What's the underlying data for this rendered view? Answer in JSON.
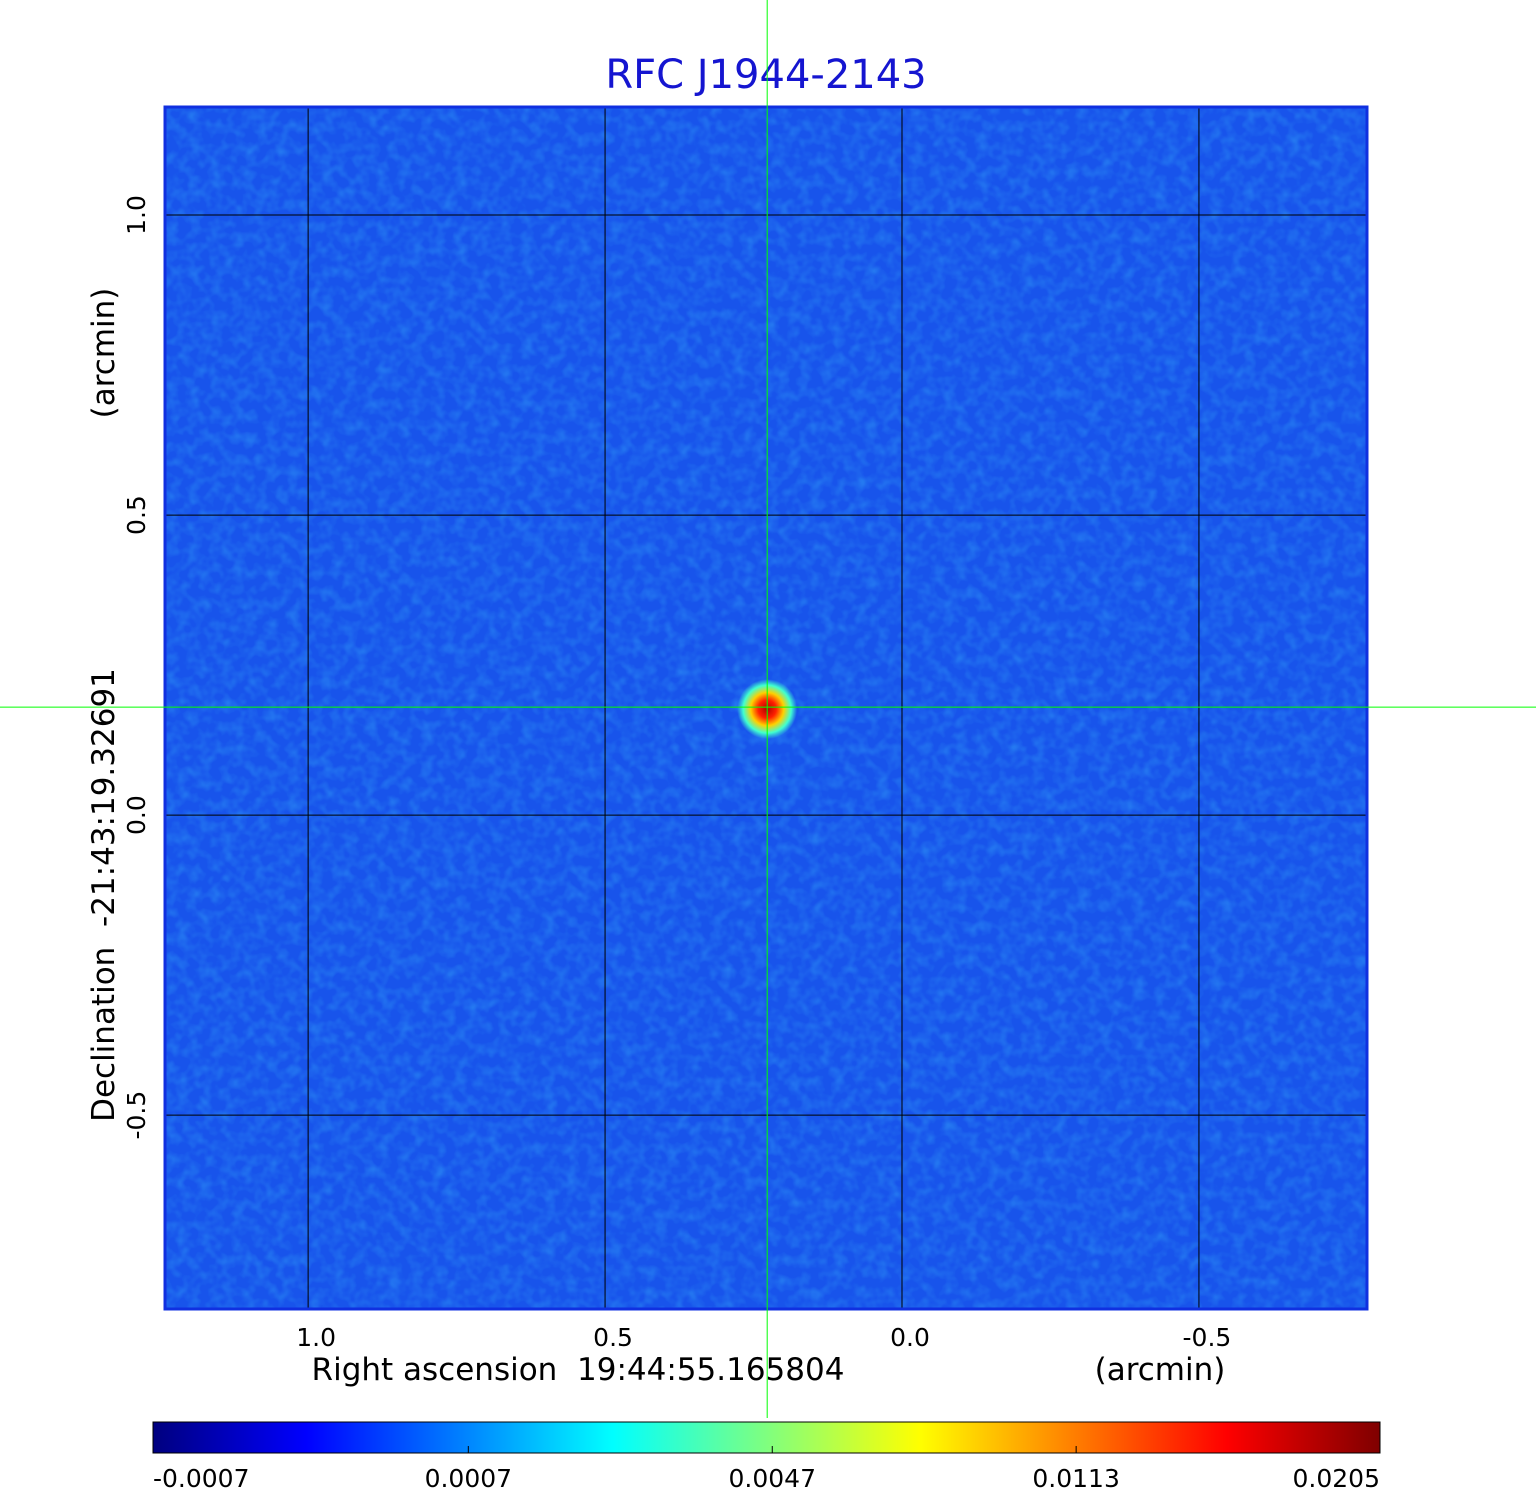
{
  "chart_data": {
    "type": "image",
    "title": "RFC J1944-2143",
    "x_label": "Right ascension  19:44:55.165804",
    "x_unit": "(arcmin)",
    "y_label": "Declination  -21:43:19.32691",
    "y_unit": "(arcmin)",
    "xlim": [
      1.241,
      -0.783
    ],
    "ylim": [
      -0.823,
      1.18
    ],
    "xticks": [
      {
        "value": 1,
        "label": "1.0"
      },
      0.5,
      {
        "value": 0,
        "label": "0.0"
      },
      -0.5
    ],
    "yticks": [
      {
        "value": 1,
        "label": "1.0"
      },
      0.5,
      {
        "value": 0,
        "label": "0.0"
      },
      -0.5
    ],
    "grid": true,
    "source": {
      "x": 0.227,
      "y": 0.18,
      "color": "#00ff00"
    },
    "colorbar": {
      "colormap": "jet",
      "scale": "sqrt",
      "lim": [
        -0.0007,
        0.0205
      ],
      "ticks": [
        -0.0007,
        0.0007,
        0.0047,
        0.0113,
        0.0205
      ]
    }
  }
}
